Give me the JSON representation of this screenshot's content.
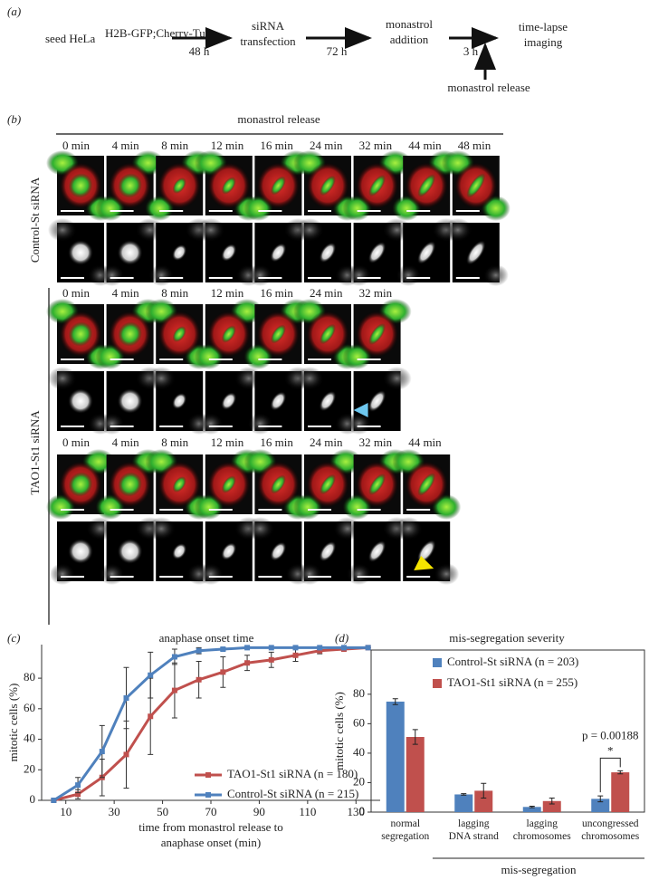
{
  "panel_a": {
    "label": "(a)",
    "seed": "seed HeLa",
    "seed_superscript": "H2B-GFP;Cherry-Tub",
    "steps": [
      [
        "siRNA",
        "transfection"
      ],
      [
        "monastrol",
        "addition"
      ],
      [
        "time-lapse",
        "imaging"
      ]
    ],
    "intervals": [
      "48 h",
      "72 h",
      "3 h"
    ],
    "release": "monastrol release"
  },
  "panel_b": {
    "label": "(b)",
    "release": "monastrol release",
    "groups": [
      {
        "name": "Control-St siRNA",
        "rows": [
          {
            "times": [
              "0 min",
              "4 min",
              "8 min",
              "12 min",
              "16 min",
              "24 min",
              "32 min",
              "44 min",
              "48 min"
            ]
          }
        ]
      },
      {
        "name": "TAO1-St1 siRNA",
        "rows": [
          {
            "times": [
              "0 min",
              "4 min",
              "8 min",
              "12 min",
              "16 min",
              "24 min",
              "32 min"
            ]
          },
          {
            "times": [
              "0 min",
              "4 min",
              "8 min",
              "12 min",
              "16 min",
              "24 min",
              "32 min",
              "44 min"
            ]
          }
        ]
      }
    ]
  },
  "chart_data": [
    {
      "type": "line",
      "panel_label": "(c)",
      "title": "anaphase onset time",
      "xlabel": [
        "time from monastrol release to",
        "anaphase onset (min)"
      ],
      "ylabel": "mitotic cells (%)",
      "x": [
        5,
        15,
        25,
        35,
        45,
        55,
        65,
        75,
        85,
        95,
        105,
        115,
        125,
        135
      ],
      "series": [
        {
          "name": "TAO1-St1 siRNA (n = 180)",
          "color": "#c0504d",
          "values": [
            0,
            4,
            15,
            30,
            55,
            72,
            79,
            84,
            90,
            92,
            95,
            98,
            99,
            100
          ],
          "errors": [
            0,
            3,
            12,
            22,
            25,
            18,
            12,
            10,
            5,
            5,
            4,
            2,
            1,
            0
          ]
        },
        {
          "name": "Control-St siRNA (n = 215)",
          "color": "#4f81bd",
          "values": [
            0,
            10,
            32,
            67,
            82,
            94,
            98,
            99,
            100,
            100,
            100,
            100,
            100,
            100
          ],
          "errors": [
            0,
            5,
            17,
            20,
            15,
            5,
            2,
            1,
            0,
            0,
            0,
            0,
            0,
            0
          ]
        }
      ],
      "xlim": [
        0,
        140
      ],
      "xticks": [
        10,
        30,
        50,
        70,
        90,
        110,
        130
      ],
      "ylim": [
        0,
        102
      ],
      "yticks": [
        0,
        20,
        40,
        60,
        80
      ],
      "legend": "lower right"
    },
    {
      "type": "bar",
      "panel_label": "(d)",
      "title": "mis-segregation severity",
      "ylabel": "mitotic cells (%)",
      "categories": [
        "normal\nsegregation",
        "lagging\nDNA strand",
        "lagging\nchromosomes",
        "uncongressed\nchromosomes"
      ],
      "series": [
        {
          "name": "Control-St siRNA (n = 203)",
          "color": "#4f81bd",
          "values": [
            75,
            12,
            3.5,
            9
          ],
          "errors": [
            2,
            0.5,
            0.5,
            2
          ]
        },
        {
          "name": "TAO1-St1 siRNA (n = 255)",
          "color": "#c0504d",
          "values": [
            51,
            14.5,
            7.5,
            27
          ],
          "errors": [
            5,
            5,
            2,
            1
          ]
        }
      ],
      "ylim": [
        0,
        110
      ],
      "yticks": [
        0,
        20,
        40,
        60,
        80
      ],
      "annotations": [
        "p = 0.00188",
        "*"
      ],
      "group_label": "mis-segregation",
      "legend": "upper right"
    }
  ]
}
